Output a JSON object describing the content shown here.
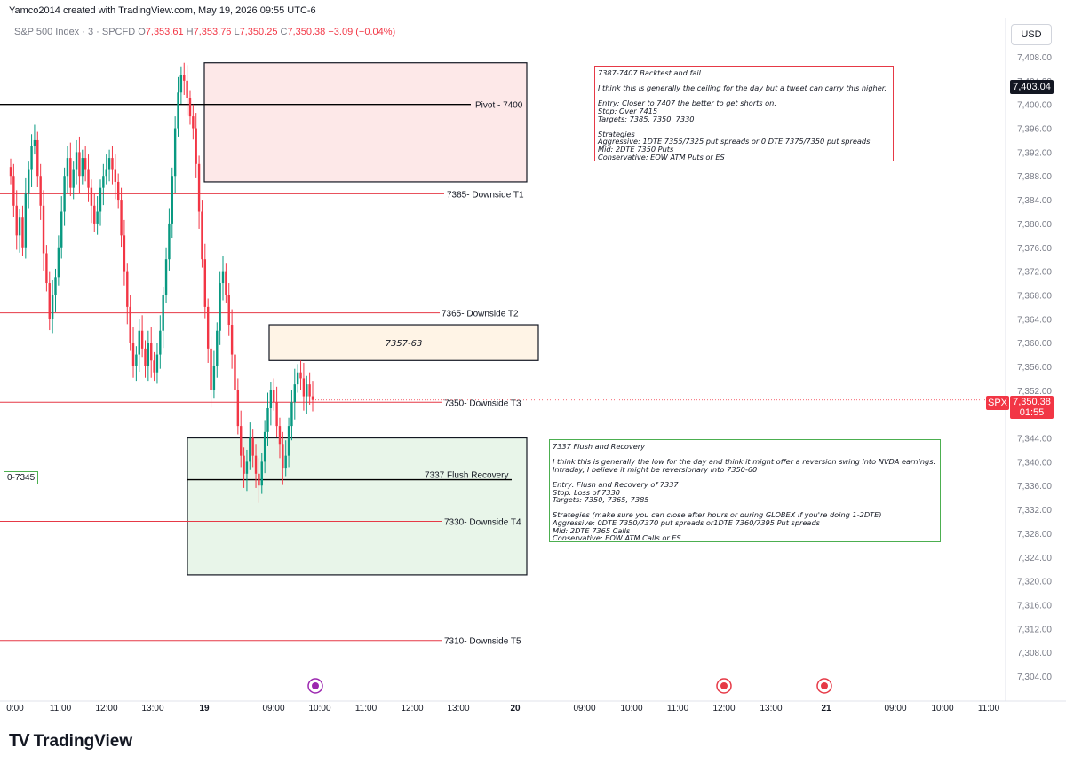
{
  "header": {
    "attribution": "Yamco2014 created with TradingView.com, May 19, 2026 09:55 UTC-6",
    "symbol": "S&P 500 Index · 3 · SPCFD",
    "open_label": "O",
    "open": "7,353.61",
    "high_label": "H",
    "high": "7,353.76",
    "low_label": "L",
    "low": "7,350.25",
    "close_label": "C",
    "close": "7,350.38",
    "change": "−3.09 (−0.04%)"
  },
  "toolbar": {
    "currency": "USD"
  },
  "price_badges": {
    "current": "7,403.04",
    "symbol": "SPX",
    "last": "7,350.38",
    "countdown": "01:55"
  },
  "notes": {
    "red_box": "7387-7407 Backtest and fail\n\nI think this is generally the ceiling for the day but a tweet can carry this higher.\n\nEntry: Closer to 7407 the better to get shorts on.\nStop: Over 7415\nTargets: 7385, 7350, 7330\n\nStrategies\nAggressive: 1DTE 7355/7325 put spreads or 0 DTE 7375/7350 put spreads\nMid: 2DTE 7350 Puts\nConservative: EOW ATM Puts or ES",
    "green_box": "7337 Flush and Recovery\n\nI think this is generally the low for the day and think it might offer a reversion swing into NVDA earnings.\nIntraday, I believe it might be reversionary into 7350-60\n\nEntry: Flush and Recovery of 7337\nStop: Loss of 7330\nTargets: 7350, 7365, 7385\n\nStrategies (make sure you can close after hours or during GLOBEX if you're doing 1-2DTE)\nAggressive: 0DTE 7350/7370 put spreads or1DTE 7360/7395 Put spreads\nMid: 2DTE 7365 Calls\nConservative: EOW ATM Calls or ES",
    "left_tag": "0-7345"
  },
  "brand": {
    "name": "TradingView"
  },
  "chart_data": {
    "type": "candlestick",
    "title": "S&P 500 Index · 3 · SPCFD",
    "ylim": [
      7300,
      7410
    ],
    "y_ticks": [
      "7,408.00",
      "7,404.00",
      "7,400.00",
      "7,396.00",
      "7,392.00",
      "7,388.00",
      "7,384.00",
      "7,380.00",
      "7,376.00",
      "7,372.00",
      "7,368.00",
      "7,364.00",
      "7,360.00",
      "7,356.00",
      "7,352.00",
      "7,348.00",
      "7,344.00",
      "7,340.00",
      "7,336.00",
      "7,332.00",
      "7,328.00",
      "7,324.00",
      "7,320.00",
      "7,316.00",
      "7,312.00",
      "7,308.00",
      "7,304.00"
    ],
    "x_ticks": [
      "0:00",
      "11:00",
      "12:00",
      "13:00",
      "19",
      "09:00",
      "10:00",
      "11:00",
      "12:00",
      "13:00",
      "20",
      "09:00",
      "10:00",
      "11:00",
      "12:00",
      "13:00",
      "21",
      "09:00",
      "10:00",
      "11:00"
    ],
    "levels": [
      {
        "label": "Pivot - 7400",
        "price": 7400,
        "color": "#000000"
      },
      {
        "label": "7385- Downside T1",
        "price": 7385,
        "color": "#e63946"
      },
      {
        "label": "7365- Downside T2",
        "price": 7365,
        "color": "#e63946"
      },
      {
        "label": "7350- Downside T3",
        "price": 7350,
        "color": "#e63946"
      },
      {
        "label": "7337 Flush Recovery",
        "price": 7337,
        "color": "#000000"
      },
      {
        "label": "7330- Downside T4",
        "price": 7330,
        "color": "#e63946"
      },
      {
        "label": "7310- Downside T5",
        "price": 7310,
        "color": "#e63946"
      }
    ],
    "zones": [
      {
        "label": "",
        "low": 7387,
        "high": 7407,
        "fill": "#fde8e8"
      },
      {
        "label": "7357-63",
        "low": 7357,
        "high": 7363,
        "fill": "#fff4e6"
      },
      {
        "label": "",
        "low": 7321,
        "high": 7344,
        "fill": "#e8f5e9"
      }
    ],
    "last_price": 7350.38,
    "up_color": "#089981",
    "down_color": "#f23645",
    "candles_close": [
      7388,
      7383,
      7378,
      7381,
      7376,
      7385,
      7389,
      7393,
      7394,
      7388,
      7383,
      7375,
      7370,
      7364,
      7368,
      7371,
      7376,
      7382,
      7388,
      7391,
      7386,
      7389,
      7392,
      7388,
      7391,
      7389,
      7386,
      7383,
      7380,
      7382,
      7386,
      7388,
      7389,
      7391,
      7389,
      7387,
      7384,
      7378,
      7372,
      7366,
      7360,
      7356,
      7358,
      7362,
      7359,
      7356,
      7360,
      7357,
      7355,
      7358,
      7362,
      7368,
      7374,
      7380,
      7388,
      7396,
      7402,
      7405,
      7404,
      7401,
      7398,
      7396,
      7390,
      7382,
      7374,
      7366,
      7359,
      7352,
      7356,
      7362,
      7370,
      7372,
      7368,
      7363,
      7358,
      7352,
      7346,
      7341,
      7338,
      7340,
      7344,
      7341,
      7338,
      7336,
      7340,
      7345,
      7349,
      7352,
      7350,
      7346,
      7343,
      7339,
      7341,
      7346,
      7350,
      7353,
      7355,
      7354,
      7351,
      7353,
      7351,
      7350.38
    ]
  }
}
